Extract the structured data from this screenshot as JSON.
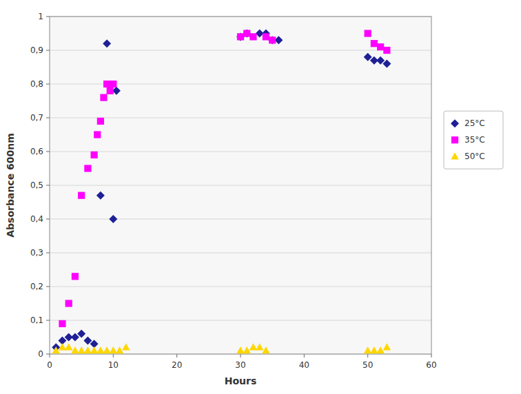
{
  "chart_data": {
    "type": "scatter",
    "xlabel": "Hours",
    "ylabel": "Absorbance 600nm",
    "xlim": [
      0,
      60
    ],
    "ylim": [
      0,
      1
    ],
    "xticks": [
      0,
      10,
      20,
      30,
      40,
      50,
      60
    ],
    "yticks": [
      0,
      {
        "value": 0.1,
        "label": "0,1"
      },
      {
        "value": 0.2,
        "label": "0,2"
      },
      {
        "value": 0.3,
        "label": "0,3"
      },
      {
        "value": 0.4,
        "label": "0,4"
      },
      {
        "value": 0.5,
        "label": "0,5"
      },
      {
        "value": 0.6,
        "label": "0,6"
      },
      {
        "value": 0.7,
        "label": "0,7"
      },
      {
        "value": 0.8,
        "label": "0,8"
      },
      {
        "value": 0.9,
        "label": "0,9"
      },
      1
    ],
    "grid": true,
    "legend": "right",
    "series": [
      {
        "name": "25°C",
        "color": "#1F2096",
        "marker": "diamond",
        "x": [
          1,
          2,
          3,
          4,
          5,
          6,
          7,
          8,
          9.0,
          10,
          10.5,
          30,
          31,
          33,
          34,
          35,
          36,
          50,
          51,
          52,
          53
        ],
        "values": [
          0.02,
          0.04,
          0.05,
          0.05,
          0.06,
          0.04,
          0.03,
          0.47,
          0.92,
          0.4,
          0.78,
          0.94,
          0.95,
          0.95,
          0.95,
          0.93,
          0.93,
          0.88,
          0.87,
          0.87,
          0.86
        ]
      },
      {
        "name": "35°C",
        "color": "#FF00FF",
        "marker": "square",
        "x": [
          2,
          3,
          4,
          5,
          6,
          7,
          7.5,
          8,
          8.5,
          9,
          9.5,
          10,
          30,
          31,
          32,
          34,
          35,
          50,
          51,
          52,
          53
        ],
        "values": [
          0.09,
          0.15,
          0.23,
          0.47,
          0.55,
          0.59,
          0.65,
          0.69,
          0.76,
          0.8,
          0.78,
          0.8,
          0.94,
          0.95,
          0.94,
          0.94,
          0.93,
          0.95,
          0.92,
          0.91,
          0.9
        ]
      },
      {
        "name": "50°C",
        "color": "#FFD700",
        "marker": "triangle",
        "x": [
          1,
          2,
          3,
          4,
          5,
          6,
          7,
          8,
          9,
          10,
          11,
          12,
          30,
          31,
          32,
          33,
          34,
          50,
          51,
          52,
          53
        ],
        "values": [
          0.01,
          0.02,
          0.02,
          0.01,
          0.01,
          0.01,
          0.01,
          0.01,
          0.01,
          0.01,
          0.01,
          0.02,
          0.01,
          0.01,
          0.02,
          0.02,
          0.01,
          0.01,
          0.01,
          0.01,
          0.02
        ]
      }
    ]
  }
}
